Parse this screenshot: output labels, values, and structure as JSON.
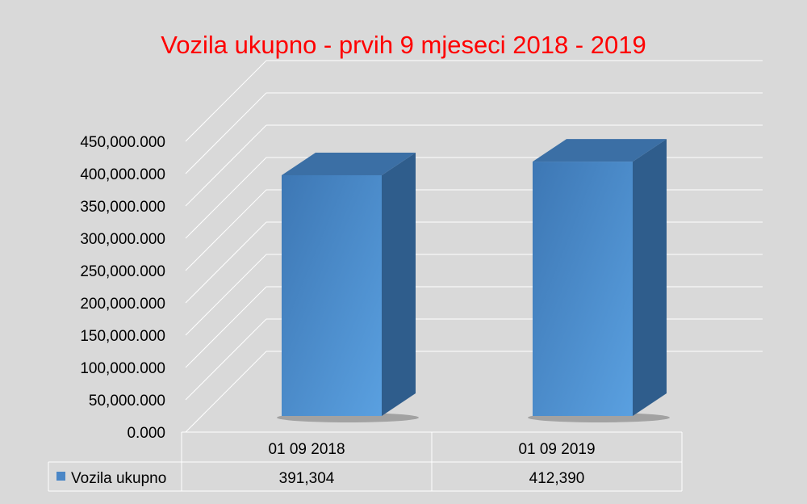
{
  "chart_data": {
    "type": "bar",
    "title": "Vozila ukupno - prvih 9 mjeseci 2018 - 2019",
    "categories": [
      "01 09 2018",
      "01 09 2019"
    ],
    "series": [
      {
        "name": "Vozila ukupno",
        "values": [
          391304,
          412390
        ],
        "value_labels": [
          "391,304",
          "412,390"
        ]
      }
    ],
    "y_tick_labels": [
      "0.000",
      "50,000.000",
      "100,000.000",
      "150,000.000",
      "200,000.000",
      "250,000.000",
      "300,000.000",
      "350,000.000",
      "400,000.000",
      "450,000.000"
    ],
    "ylim": [
      0,
      450000
    ],
    "grid": true,
    "legend": "data-table-left",
    "style": "3d-column"
  },
  "colors": {
    "background": "#d9d9d9",
    "title": "#ff0000",
    "bar_front": "#4a86c6",
    "bar_side": "#2f5d8c",
    "bar_top": "#3b6fa5",
    "grid": "#ffffff"
  }
}
